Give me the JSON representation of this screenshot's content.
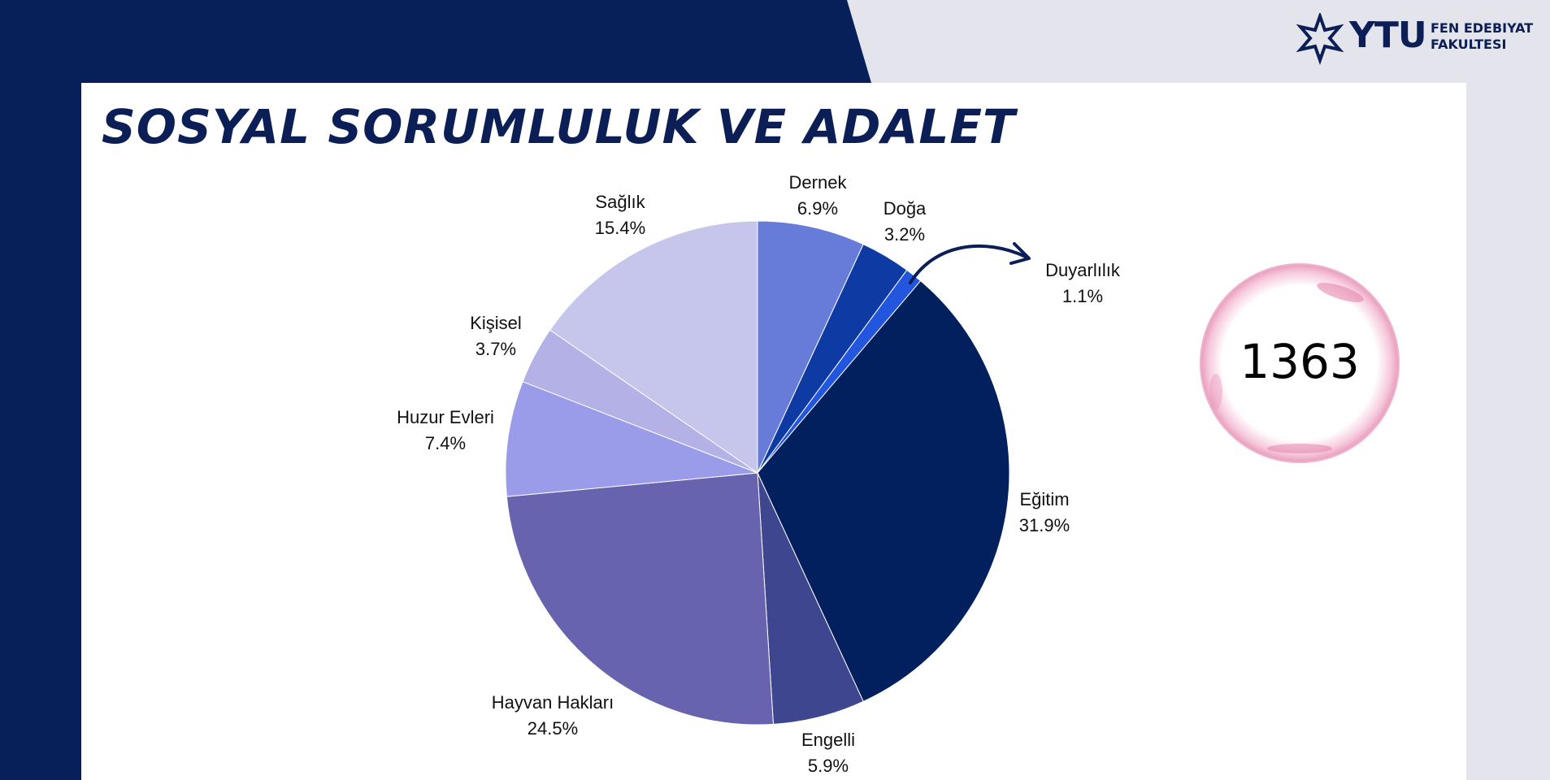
{
  "header": {
    "logo_ytu": "YTU",
    "logo_line1": "FEN EDEBIYAT",
    "logo_line2": "FAKULTESI"
  },
  "title": "SOSYAL SORUMLULUK VE ADALET",
  "total": "1363",
  "colors": {
    "navy": "#0b1f56",
    "background": "#e4e5ec",
    "card": "#ffffff"
  },
  "chart_data": {
    "type": "pie",
    "title": "",
    "start": "12 o'clock",
    "direction": "clockwise",
    "slices": [
      {
        "label": "Dernek",
        "value": 6.9,
        "display": "6.9%",
        "color": "#677bd9"
      },
      {
        "label": "Doğa",
        "value": 3.2,
        "display": "3.2%",
        "color": "#0d3aa3"
      },
      {
        "label": "Duyarlılık",
        "value": 1.1,
        "display": "1.1%",
        "color": "#2356df"
      },
      {
        "label": "Eğitim",
        "value": 31.9,
        "display": "31.9%",
        "color": "#021f5e"
      },
      {
        "label": "Engelli",
        "value": 5.9,
        "display": "5.9%",
        "color": "#3e468f"
      },
      {
        "label": "Hayvan Hakları",
        "value": 24.5,
        "display": "24.5%",
        "color": "#6763ae"
      },
      {
        "label": "Huzur Evleri",
        "value": 7.4,
        "display": "7.4%",
        "color": "#9a9be9"
      },
      {
        "label": "Kişisel",
        "value": 3.7,
        "display": "3.7%",
        "color": "#b3b1e5"
      },
      {
        "label": "Sağlık",
        "value": 15.4,
        "display": "15.4%",
        "color": "#c6c6ec"
      }
    ]
  }
}
